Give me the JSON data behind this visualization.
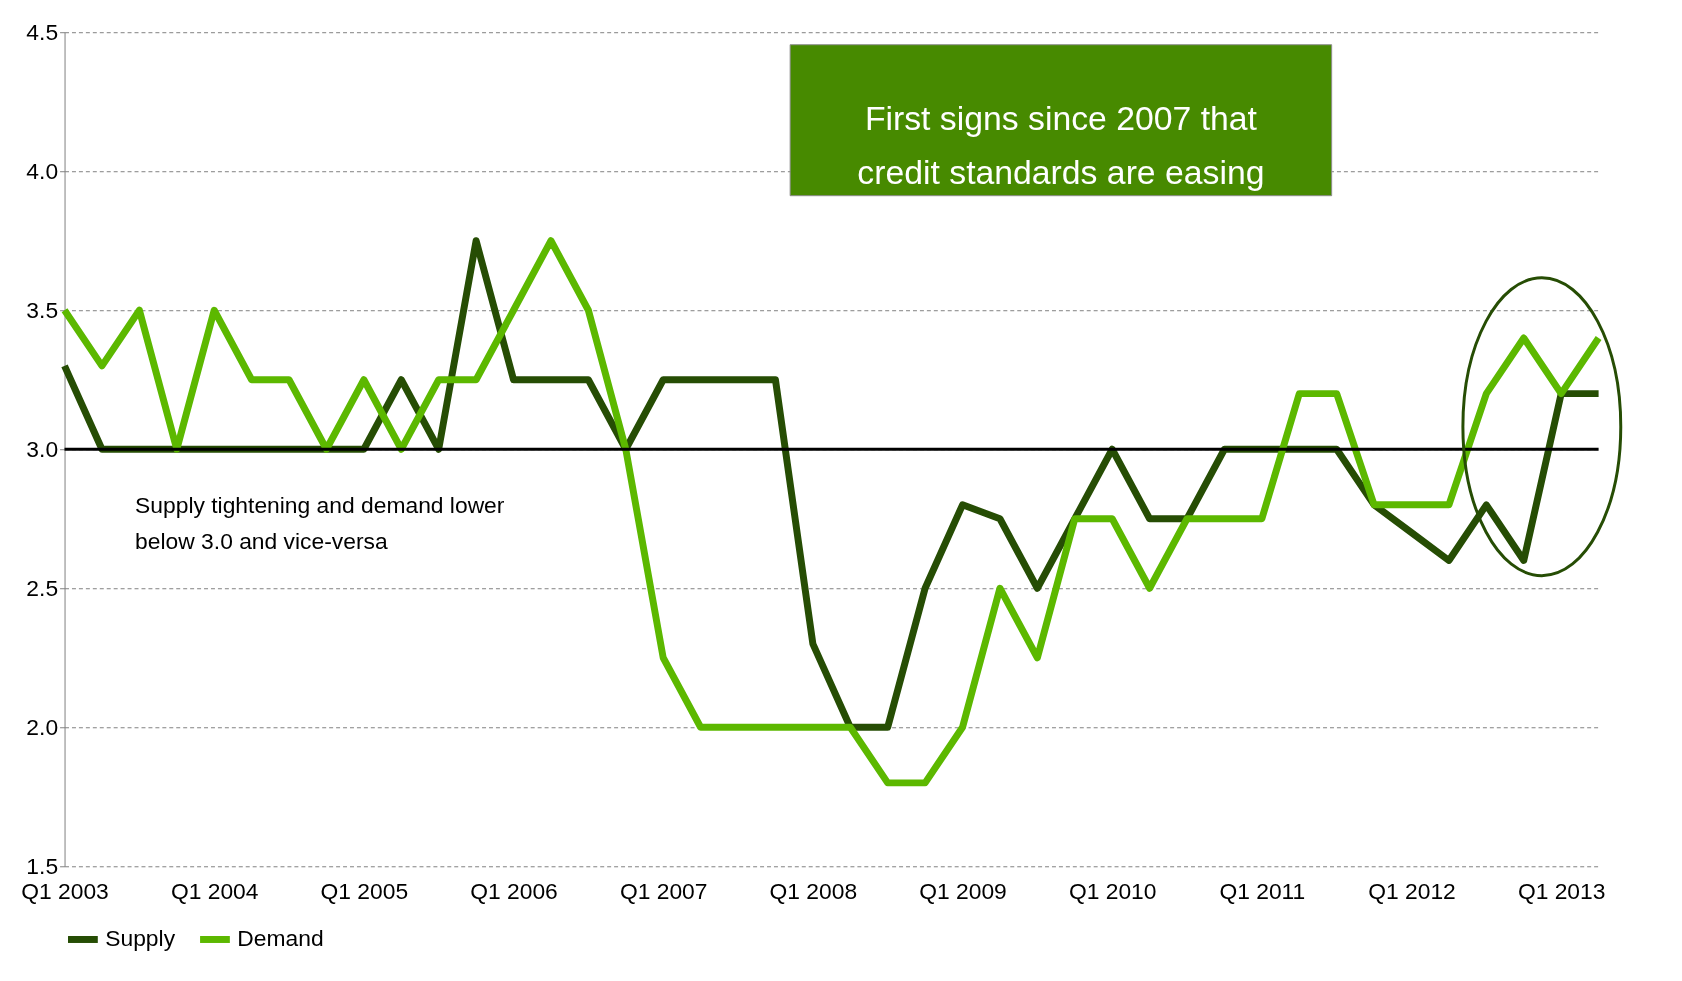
{
  "chart_data": {
    "type": "line",
    "categories": [
      "Q1 2003",
      null,
      null,
      null,
      "Q1 2004",
      null,
      null,
      null,
      "Q1 2005",
      null,
      null,
      null,
      "Q1 2006",
      null,
      null,
      null,
      "Q1 2007",
      null,
      null,
      null,
      "Q1 2008",
      null,
      null,
      null,
      "Q1 2009",
      null,
      null,
      null,
      "Q1 2010",
      null,
      null,
      null,
      "Q1 2011",
      null,
      null,
      null,
      "Q1 2012",
      null,
      null,
      null,
      "Q1 2013",
      null
    ],
    "series": [
      {
        "name": "Supply",
        "color": "#264d04",
        "values": [
          3.3,
          3.0,
          3.0,
          3.0,
          3.0,
          3.0,
          3.0,
          3.0,
          3.0,
          3.25,
          3.0,
          3.75,
          3.25,
          3.25,
          3.25,
          3.0,
          3.25,
          3.25,
          3.25,
          3.25,
          2.3,
          2.0,
          2.0,
          2.5,
          2.8,
          2.75,
          2.5,
          2.75,
          3.0,
          2.75,
          2.75,
          3.0,
          3.0,
          3.0,
          3.0,
          2.8,
          2.7,
          2.6,
          2.8,
          2.6,
          3.2,
          3.2
        ]
      },
      {
        "name": "Demand",
        "color": "#5cb800",
        "values": [
          3.5,
          3.3,
          3.5,
          3.0,
          3.5,
          3.25,
          3.25,
          3.0,
          3.25,
          3.0,
          3.25,
          3.25,
          3.5,
          3.75,
          3.5,
          3.0,
          2.25,
          2.0,
          2.0,
          2.0,
          2.0,
          2.0,
          1.8,
          1.8,
          2.0,
          2.5,
          2.25,
          2.75,
          2.75,
          2.5,
          2.75,
          2.75,
          2.75,
          3.2,
          3.2,
          2.8,
          2.8,
          2.8,
          3.2,
          3.4,
          3.2,
          3.4
        ]
      }
    ],
    "ylim": [
      1.5,
      4.5
    ],
    "yticks": [
      {
        "value": 1.5,
        "label": "1.5"
      },
      {
        "value": 2,
        "label": "2.0"
      },
      {
        "value": 2.5,
        "label": "2.5"
      },
      {
        "value": 3,
        "label": "3.0"
      },
      {
        "value": 3.5,
        "label": "3.5"
      },
      {
        "value": 4,
        "label": "4.0"
      },
      {
        "value": 4.5,
        "label": "4.5"
      }
    ],
    "ref_lines": [
      {
        "axis": "y",
        "value": 3.0,
        "color": "#000000"
      }
    ],
    "annotations": [
      "Supply tightening and demand lower\nbelow 3.0 and vice-versa",
      "First signs since 2007 that\ncredit standards are easing"
    ],
    "grid": "y",
    "legend": "bottom",
    "marker": "none",
    "line_style": "solid"
  }
}
